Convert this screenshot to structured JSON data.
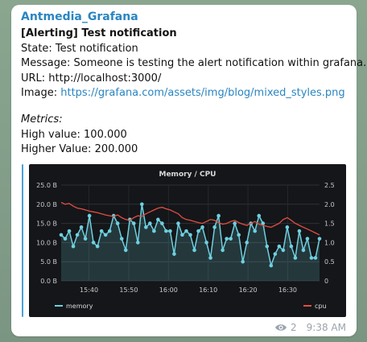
{
  "message": {
    "sender": "Antmedia_Grafana",
    "title": "[Alerting] Test notification",
    "state": "State: Test notification",
    "message_line": "Message: Someone is testing the alert notification within grafana.",
    "url_line": "URL: http://localhost:3000/",
    "image_label": "Image: ",
    "image_link": "https://grafana.com/assets/img/blog/mixed_styles.png",
    "metrics_heading": "Metrics:",
    "high_value": "High value: 100.000",
    "higher_value": "Higher Value: 200.000",
    "views": "2",
    "time": "9:38 AM"
  },
  "colors": {
    "link": "#2a85c1",
    "memory_series": "#6ed0e0",
    "cpu_series": "#e24d42",
    "chart_bg": "#141619"
  },
  "icons": {
    "views": "eye-icon"
  },
  "chart_data": {
    "type": "line",
    "title": "Memory / CPU",
    "x_ticks": [
      "15:40",
      "15:50",
      "16:00",
      "16:10",
      "16:20",
      "16:30"
    ],
    "y_left_ticks": [
      "0.0 B",
      "5.0 B",
      "10.0 B",
      "15.0 B",
      "20.0 B",
      "25.0 B"
    ],
    "y_right_ticks": [
      "0",
      "0.5",
      "1.0",
      "1.5",
      "2.0",
      "2.5"
    ],
    "ylim_left": [
      0,
      25
    ],
    "ylim_right": [
      0,
      2.5
    ],
    "x_start_minutes": 0,
    "x_end_minutes": 65,
    "tick_positions_minutes": [
      7,
      17,
      27,
      37,
      47,
      57
    ],
    "legend": "bottom",
    "series": [
      {
        "name": "memory",
        "axis": "left",
        "style": "line-area-points",
        "values": [
          12,
          11,
          13,
          9,
          12,
          14,
          11,
          17,
          10,
          9,
          13,
          12,
          13,
          17,
          15,
          11,
          8,
          16,
          15,
          10,
          20,
          14,
          15,
          13,
          16,
          15,
          13,
          13,
          7,
          15,
          12,
          13,
          12,
          8,
          13,
          14,
          10,
          6,
          14,
          17,
          8,
          11,
          11,
          15,
          12,
          5,
          10,
          15,
          13,
          17,
          15,
          9,
          4,
          7,
          9,
          8,
          14,
          9,
          6,
          13,
          8,
          11,
          6,
          6,
          11
        ]
      },
      {
        "name": "cpu",
        "axis": "right",
        "style": "line",
        "values": [
          2.05,
          2.0,
          2.02,
          1.95,
          1.9,
          1.88,
          1.85,
          1.82,
          1.8,
          1.78,
          1.75,
          1.72,
          1.7,
          1.68,
          1.72,
          1.65,
          1.6,
          1.58,
          1.65,
          1.7,
          1.68,
          1.75,
          1.8,
          1.85,
          1.9,
          1.92,
          1.88,
          1.85,
          1.8,
          1.75,
          1.65,
          1.6,
          1.58,
          1.55,
          1.52,
          1.5,
          1.55,
          1.6,
          1.58,
          1.52,
          1.48,
          1.5,
          1.55,
          1.58,
          1.52,
          1.48,
          1.45,
          1.5,
          1.55,
          1.48,
          1.45,
          1.42,
          1.4,
          1.45,
          1.5,
          1.6,
          1.65,
          1.58,
          1.5,
          1.45,
          1.4,
          1.35,
          1.3,
          1.25,
          1.2
        ]
      }
    ]
  }
}
